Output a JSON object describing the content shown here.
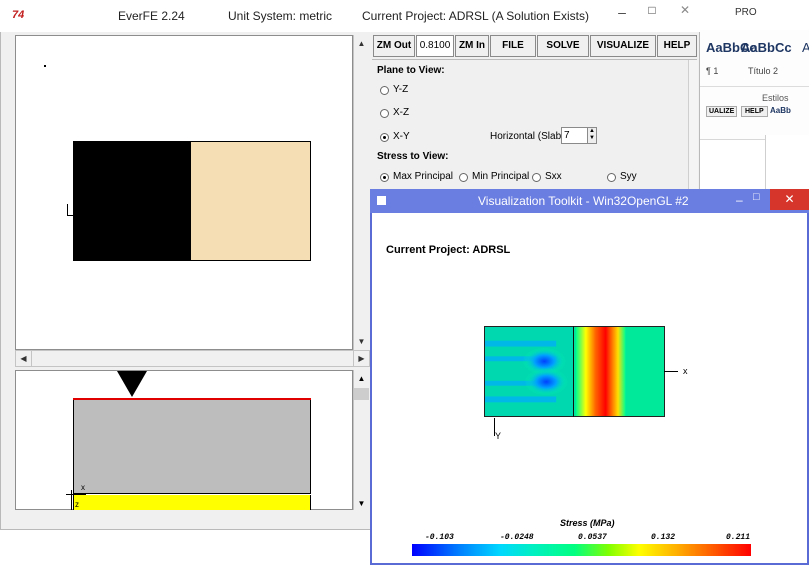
{
  "word_background": {
    "title_fragment": "PRO",
    "style_samples": [
      "AaBbCc",
      "AaBbCc",
      "A"
    ],
    "style_labels": [
      "¶ 1",
      "Título 2"
    ],
    "styles_group": "Estilos",
    "ghost_toolbar": [
      "UALIZE",
      "HELP"
    ],
    "ghost_style": "AaBb"
  },
  "everfe": {
    "app_icon": "74",
    "title": "EverFE 2.24",
    "unit_system": "Unit System: metric",
    "project_status": "Current Project: ADRSL (A Solution Exists)",
    "window_controls": {
      "minimize": "–",
      "maximize": "□",
      "close": "✕"
    },
    "toolbar": {
      "zoom_out": "ZM Out",
      "zoom_value": "0.8100",
      "zoom_in": "ZM In",
      "file": "FILE",
      "solve": "SOLVE",
      "visualize": "VISUALIZE",
      "help": "HELP"
    },
    "plane_to_view": {
      "heading": "Plane to View:",
      "options": [
        "Y-Z",
        "X-Z",
        "X-Y"
      ],
      "selected": "X-Y",
      "horizontal_label": "Horizontal (Slab)",
      "horizontal_value": "7"
    },
    "stress_to_view": {
      "heading": "Stress to View:",
      "options": [
        "Max Principal",
        "Min Principal",
        "Sxx",
        "Syy"
      ],
      "selected": "Max Principal"
    },
    "lower_view_axes": {
      "x": "x",
      "z": "z"
    },
    "colors": {
      "slab_tan": "#f5deb3",
      "base_yellow": "#ffff00",
      "surface_red": "#e00000",
      "slab_gray": "#bdbdbd"
    }
  },
  "vtk": {
    "title": "Visualization Toolkit - Win32OpenGL #2",
    "window_controls": {
      "minimize": "–",
      "maximize": "□",
      "close": "✕"
    },
    "project_label": "Current Project: ADRSL",
    "axis_x": "x",
    "axis_y": "Y",
    "legend_title": "Stress (MPa)",
    "legend_ticks": [
      "-0.103",
      "-0.0248",
      "0.0537",
      "0.132",
      "0.211"
    ],
    "titlebar_color": "#6a7de0"
  }
}
